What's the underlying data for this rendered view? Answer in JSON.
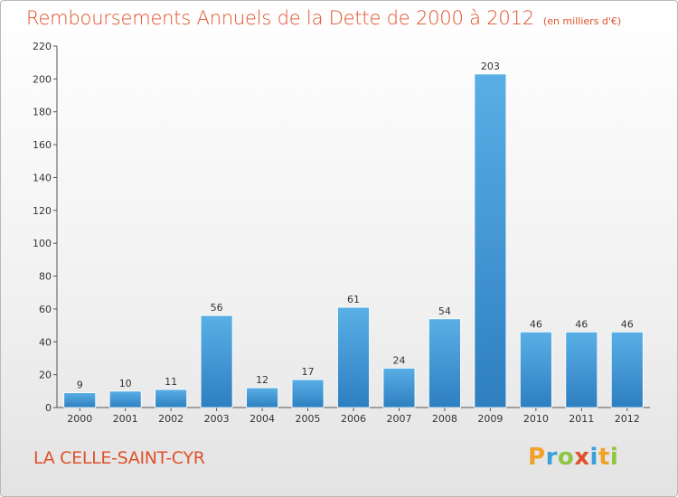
{
  "header": {
    "title": "Remboursements Annuels de la Dette de 2000 à 2012",
    "subtitle": "(en milliers d'€)"
  },
  "footer": {
    "commune": "LA CELLE-SAINT-CYR",
    "logo_letters": [
      "P",
      "r",
      "o",
      "x",
      "i",
      "t",
      "i"
    ],
    "logo_colors": [
      "#f0a12a",
      "#3aa0d8",
      "#8cc63f",
      "#e0512a",
      "#3aa0d8",
      "#f0a12a",
      "#8cc63f"
    ]
  },
  "colors": {
    "bar_light": "#5aafe6",
    "bar_dark": "#2d7fc0",
    "axis": "#555555",
    "title": "#e0512a"
  },
  "chart_data": {
    "type": "bar",
    "title": "Remboursements Annuels de la Dette de 2000 à 2012",
    "subtitle": "(en milliers d'€)",
    "categories": [
      "2000",
      "2001",
      "2002",
      "2003",
      "2004",
      "2005",
      "2006",
      "2007",
      "2008",
      "2009",
      "2010",
      "2011",
      "2012"
    ],
    "values": [
      9,
      10,
      11,
      56,
      12,
      17,
      61,
      24,
      54,
      203,
      46,
      46,
      46
    ],
    "ylim": [
      0,
      220
    ],
    "yticks": [
      0,
      20,
      40,
      60,
      80,
      100,
      120,
      140,
      160,
      180,
      200,
      220
    ],
    "xlabel": "",
    "ylabel": "",
    "grid": false,
    "legend": "none"
  }
}
